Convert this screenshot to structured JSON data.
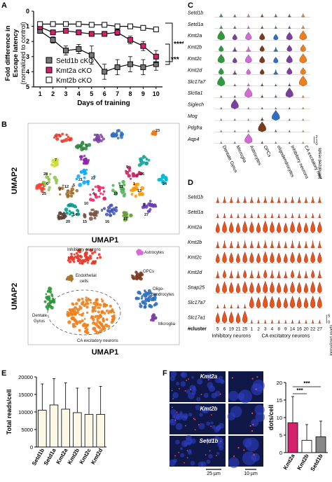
{
  "panel_labels": {
    "a": "A",
    "b": "B",
    "c": "C",
    "d": "D",
    "e": "E",
    "f": "F"
  },
  "panelA": {
    "ylabel_lines": [
      "Fold difference in",
      "Escape latency",
      "(normalized to control)"
    ],
    "xlabel": "Days of training",
    "legend": [
      "Setd1b cKO",
      "Kmt2a cKO",
      "Kmt2b cKO"
    ],
    "sig": [
      "****",
      "***"
    ]
  },
  "chart_data": [
    {
      "panel": "A",
      "type": "line",
      "xlabel": "Days of training",
      "ylabel": "Fold difference in Escape latency (normalized to control)",
      "x": [
        1,
        2,
        3,
        4,
        5,
        6,
        7,
        8,
        9,
        10
      ],
      "ylim": [
        0,
        5
      ],
      "y_inverted": true,
      "series": [
        {
          "name": "Setd1b cKO",
          "color": "#777777",
          "values": [
            1.3,
            1.9,
            2.6,
            2.5,
            2.9,
            4.0,
            3.7,
            3.5,
            3.7,
            3.5
          ],
          "errors": [
            0.1,
            0.2,
            0.3,
            0.3,
            0.6,
            0.5,
            0.5,
            0.5,
            0.5,
            0.4
          ]
        },
        {
          "name": "Kmt2a cKO",
          "color": "#d6206e",
          "values": [
            1.05,
            1.4,
            1.3,
            1.4,
            1.5,
            1.5,
            1.4,
            1.9,
            2.3,
            3.0
          ],
          "errors": [
            0.1,
            0.15,
            0.15,
            0.15,
            0.15,
            0.15,
            0.2,
            0.25,
            0.3,
            0.4
          ]
        },
        {
          "name": "Kmt2b cKO",
          "color": "#ffffff",
          "values": [
            0.85,
            0.85,
            0.85,
            0.85,
            0.9,
            0.9,
            1.0,
            1.0,
            1.1,
            1.2
          ],
          "errors": [
            0.1,
            0.1,
            0.1,
            0.1,
            0.1,
            0.1,
            0.1,
            0.1,
            0.1,
            0.15
          ]
        }
      ]
    },
    {
      "panel": "E",
      "type": "bar",
      "categories": [
        "Setd1b",
        "Setd1a",
        "Kmt2a",
        "Kmt2b",
        "Kmt2c",
        "Kmt2d"
      ],
      "values": [
        10500,
        12000,
        10800,
        9800,
        9300,
        9300
      ],
      "errors": [
        7500,
        7500,
        7500,
        7000,
        7500,
        8000
      ],
      "ylabel": "Total reads/cell",
      "ylim": [
        0,
        20000
      ],
      "yticks": [
        0,
        5000,
        10000,
        15000,
        20000
      ]
    },
    {
      "panel": "F",
      "type": "bar",
      "categories": [
        "Kmt2a",
        "Kmt2b",
        "Setd1b"
      ],
      "values": [
        8.5,
        3.5,
        4.5
      ],
      "errors": [
        7.5,
        4.5,
        4.5
      ],
      "colors": [
        "#d6206e",
        "#ffffff",
        "#888888"
      ],
      "ylabel": "dots/cell",
      "ylim": [
        0,
        20
      ],
      "yticks": [
        0,
        5,
        10,
        15,
        20
      ],
      "sig": [
        "***",
        "***"
      ]
    }
  ],
  "panelB": {
    "axis_x": "UMAP1",
    "axis_y": "UMAP2",
    "top_numbers": [
      "23",
      "7",
      "28",
      "6",
      "12",
      "5",
      "2",
      "4",
      "11",
      "13",
      "8",
      "19",
      "21",
      "10",
      "3",
      "1",
      "14",
      "15",
      "16",
      "17",
      "22",
      "27",
      "20",
      "26",
      "25",
      "24",
      "9"
    ],
    "cell_types": [
      "Inhibitory neurons",
      "Astrocytes",
      "Endothelial cells",
      "OPCs",
      "Oligo-dendrocytes",
      "Dentate Gyrus",
      "Microglia",
      "CA excitatory neurons"
    ]
  },
  "panelC": {
    "genes": [
      "Setd1b",
      "Setd1a",
      "Kmt2a",
      "Kmt2b",
      "Kmt2c",
      "Kmt2d",
      "Slc17a7",
      "Slc6a1",
      "Siglech",
      "Mog",
      "Pdgfra",
      "Aqp4"
    ],
    "celltypes": [
      "Dentate Gyrus",
      "Microglia",
      "Astrocytes",
      "OPCs",
      "oligodendrocytes",
      "Inhibitory neurons",
      "CA excitatory neurons"
    ],
    "colors": [
      "#2e9a3e",
      "#7b3fa0",
      "#d56ad6",
      "#7b3a1e",
      "#2f6fc1",
      "#7b3fa0",
      "#ee7f1b"
    ],
    "normalized_label": "Normalized reads",
    "scale": [
      "2",
      "1",
      "0"
    ]
  },
  "panelD": {
    "genes": [
      "Setd1b",
      "Setd1a",
      "Kmt2a",
      "Kmt2b",
      "Kmt2c",
      "Kmt2d",
      "Snap25",
      "Slc17a7",
      "Slc17a1"
    ],
    "cluster_label": "#cluster",
    "clusters": [
      "5",
      "6",
      "19",
      "21",
      "25",
      "1",
      "2",
      "3",
      "4",
      "8",
      "9",
      "14",
      "16",
      "20",
      "22",
      "27"
    ],
    "group_inhib": "Inhibitory neurons",
    "group_ca": "CA excitatory neurons",
    "normalized_label": "Normalized reads",
    "scale": [
      "0",
      "5"
    ]
  },
  "panelE": {
    "ylabel": "Total reads/cell"
  },
  "panelF": {
    "image_labels": [
      "Kmt2a",
      "Kmt2b",
      "Setd1b"
    ],
    "scale_bars": [
      "25 µm",
      "10 µm"
    ],
    "ylabel": "dots/cell"
  }
}
